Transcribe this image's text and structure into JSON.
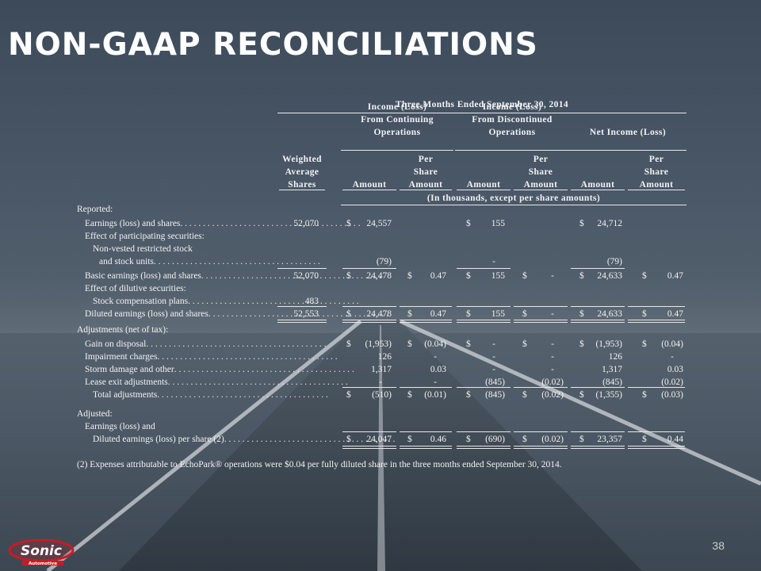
{
  "slide": {
    "title": "NON-GAAP RECONCILIATIONS",
    "page_number": "38",
    "logo_text": "Sonic",
    "logo_subtext": "Automotive"
  },
  "table": {
    "period": "Three Months Ended September 30, 2014",
    "groups": {
      "cont": [
        "Income (Loss)",
        "From Continuing",
        "Operations"
      ],
      "disc": [
        "Income (Loss)",
        "From Discontinued",
        "Operations"
      ],
      "net": [
        "Net Income (Loss)"
      ]
    },
    "col_heads": {
      "shares": [
        "Weighted",
        "Average",
        "Shares"
      ],
      "amount": "Amount",
      "per_share": [
        "Per",
        "Share",
        "Amount"
      ]
    },
    "units": "(In thousands, except per share amounts)",
    "currency": "$",
    "rows": [
      {
        "label": "Reported:"
      },
      {
        "label": "Earnings (loss) and shares",
        "shares": "52,070",
        "c_amt": "24,557",
        "d_amt": "155",
        "n_amt": "24,712"
      },
      {
        "label": "Effect of participating securities:"
      },
      {
        "label": "Non-vested restricted stock"
      },
      {
        "label": "and stock units",
        "c_amt": "(79)",
        "d_amt": "-",
        "n_amt": "(79)"
      },
      {
        "label": "Basic earnings (loss) and shares",
        "shares": "52,070",
        "c_amt": "24,478",
        "c_ps": "0.47",
        "d_amt": "155",
        "d_ps": "-",
        "n_amt": "24,633",
        "n_ps": "0.47"
      },
      {
        "label": "Effect of dilutive securities:"
      },
      {
        "label": "Stock compensation plans",
        "shares": "483"
      },
      {
        "label": "Diluted earnings (loss) and shares",
        "shares": "52,553",
        "c_amt": "24,478",
        "c_ps": "0.47",
        "d_amt": "155",
        "d_ps": "-",
        "n_amt": "24,633",
        "n_ps": "0.47"
      },
      {
        "label": "Adjustments (net of tax):"
      },
      {
        "label": "Gain on disposal",
        "c_amt": "(1,953)",
        "c_ps": "(0.04)",
        "d_amt": "-",
        "d_ps": "-",
        "n_amt": "(1,953)",
        "n_ps": "(0.04)"
      },
      {
        "label": "Impairment charges",
        "c_amt": "126",
        "c_ps": "-",
        "d_amt": "-",
        "d_ps": "-",
        "n_amt": "126",
        "n_ps": "-"
      },
      {
        "label": "Storm damage and other",
        "c_amt": "1,317",
        "c_ps": "0.03",
        "d_amt": "-",
        "d_ps": "-",
        "n_amt": "1,317",
        "n_ps": "0.03"
      },
      {
        "label": "Lease exit adjustments",
        "c_amt": "-",
        "c_ps": "-",
        "d_amt": "(845)",
        "d_ps": "(0.02)",
        "n_amt": "(845)",
        "n_ps": "(0.02)"
      },
      {
        "label": "Total adjustments",
        "c_amt": "(510)",
        "c_ps": "(0.01)",
        "d_amt": "(845)",
        "d_ps": "(0.02)",
        "n_amt": "(1,355)",
        "n_ps": "(0.03)"
      },
      {
        "label": "Adjusted:"
      },
      {
        "label": "Earnings (loss) and"
      },
      {
        "label": "Diluted earnings (loss) per share (2)",
        "c_amt": "24,047",
        "c_ps": "0.46",
        "d_amt": "(690)",
        "d_ps": "(0.02)",
        "n_amt": "23,357",
        "n_ps": "0.44"
      }
    ],
    "footnote": "(2) Expenses attributable to EchoPark® operations were $0.04 per fully diluted share in the three months ended September 30, 2014."
  }
}
